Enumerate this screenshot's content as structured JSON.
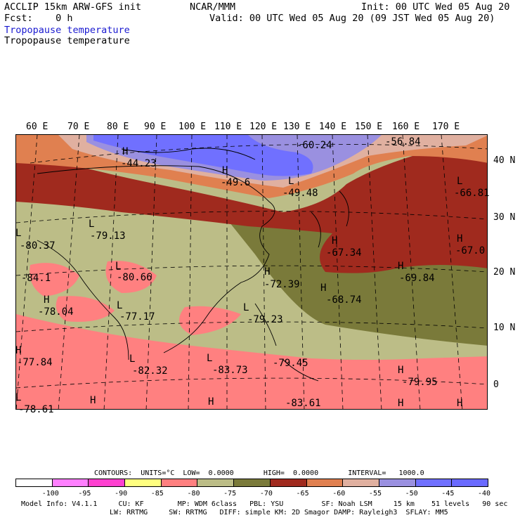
{
  "header": {
    "left1": "ACCLIP 15km ARW-GFS init",
    "center1": "NCAR/MMM",
    "right1": "Init: 00 UTC Wed 05 Aug 20",
    "left2": "Fcst:    0 h",
    "right2": "Valid: 00 UTC Wed 05 Aug 20 (09 JST Wed 05 Aug 20)",
    "field1": "Tropopause temperature",
    "field2": "Tropopause temperature"
  },
  "lon_labels": [
    "60 E",
    "70 E",
    "80 E",
    "90 E",
    "100 E",
    "110 E",
    "120 E",
    "130 E",
    "140 E",
    "150 E",
    "160 E",
    "170 E"
  ],
  "lat_labels": [
    "40 N",
    "30 N",
    "20 N",
    "10 N",
    "0"
  ],
  "values": [
    "-60.24",
    "-56.84",
    "-44.23",
    "-49.6",
    "-49.48",
    "-66.81",
    "-79.13",
    "-80.37",
    "-67.34",
    "-67.0",
    "-84.1",
    "-80.66",
    "-69.84",
    "-72.39",
    "-68.74",
    "-78.04",
    "-77.17",
    "-79.23",
    "-77.84",
    "-82.32",
    "-83.73",
    "-79.45",
    "-79.95",
    "-78.61",
    "-83.61"
  ],
  "hl_marks": [
    "H",
    "H",
    "L",
    "L",
    "H",
    "L",
    "H",
    "H",
    "H",
    "H",
    "L",
    "L",
    "L",
    "H",
    "L",
    "L",
    "L",
    "H",
    "H",
    "H",
    "L",
    "H",
    "H",
    "H"
  ],
  "footer": {
    "contours": "CONTOURS:  UNITS=°C  LOW=  0.0000       HIGH=  0.0000       INTERVAL=   1000.0",
    "model1": "Model Info: V4.1.1     CU: KF        MP: WDM 6class   PBL: YSU         SF: Noah LSM     15 km    51 levels   90 sec",
    "model2": "LW: RRTMG     SW: RRTMG   DIFF: simple KM: 2D Smagor DAMP: Rayleigh3  SFLAY: MM5"
  },
  "colorbar": {
    "labels": [
      "-100",
      "-95",
      "-90",
      "-85",
      "-80",
      "-75",
      "-70",
      "-65",
      "-60",
      "-55",
      "-50",
      "-45",
      "-40",
      "°C"
    ],
    "colors": [
      "#ffffff",
      "#ff80ff",
      "#ff40d0",
      "#ffff80",
      "#ff8080",
      "#bcbd87",
      "#7a7a3a",
      "#a02a1e",
      "#e08050",
      "#e0b0a0",
      "#9a90e0",
      "#7070ff",
      "#6a6aff"
    ]
  },
  "colors": {
    "olive_light": "#bcbd87",
    "olive_dark": "#7a7a3a",
    "maroon": "#a02a1e",
    "orange": "#e08050",
    "salmon": "#ff8080",
    "pink_light": "#e0b0a0",
    "lavender": "#9a90e0",
    "blue": "#7070ff"
  }
}
